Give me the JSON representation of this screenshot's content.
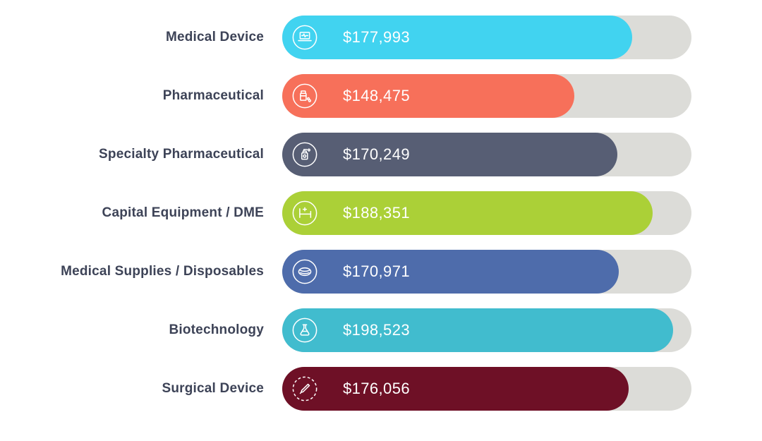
{
  "chart_data": {
    "type": "bar",
    "orientation": "horizontal",
    "title": "",
    "xlabel": "",
    "ylabel": "",
    "xlim": [
      0,
      208000
    ],
    "grid": false,
    "legend": false,
    "track_color": "#dcdcd8",
    "label_color": "#3d4357",
    "value_text_color": "#ffffff",
    "categories": [
      "Medical Device",
      "Pharmaceutical",
      "Specialty Pharmaceutical",
      "Capital Equipment / DME",
      "Medical Supplies / Disposables",
      "Biotechnology",
      "Surgical Device"
    ],
    "values": [
      177993,
      148475,
      170249,
      188351,
      170971,
      198523,
      176056
    ],
    "value_labels": [
      "$177,993",
      "$148,475",
      "$170,249",
      "$188,351",
      "$170,971",
      "$198,523",
      "$176,056"
    ],
    "colors": [
      "#41d3f0",
      "#f7705a",
      "#575e74",
      "#abd037",
      "#4e6cab",
      "#41bcce",
      "#6e1026"
    ],
    "icons": [
      "medical-device-icon",
      "pill-bottle-icon",
      "medicine-bottle-icon",
      "hospital-bed-icon",
      "mask-icon",
      "flask-icon",
      "scalpel-icon"
    ]
  }
}
